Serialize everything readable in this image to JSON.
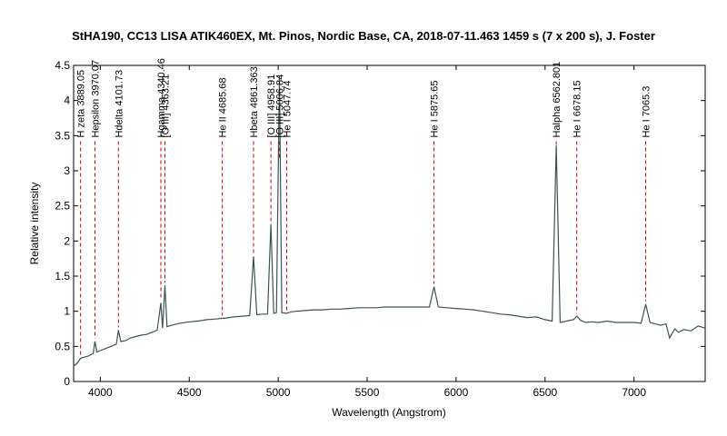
{
  "chart_data": {
    "type": "line",
    "title": "StHA190, CC13 LISA ATIK460EX, Mt. Pinos, Nordic Base, CA,  2018-07-11.463   1459 s (7 x 200 s),  J. Foster",
    "xlabel": "Wavelength (Angstrom)",
    "ylabel": "Relative intensity",
    "xlim": [
      3850,
      7400
    ],
    "ylim": [
      0,
      4.5
    ],
    "x_ticks": [
      4000,
      4500,
      5000,
      5500,
      6000,
      6500,
      7000
    ],
    "y_ticks": [
      0,
      0.5,
      1,
      1.5,
      2,
      2.5,
      3,
      3.5,
      4,
      4.5
    ],
    "x_tick_labels": [
      "4000",
      "4500",
      "5000",
      "5500",
      "6000",
      "6500",
      "7000"
    ],
    "y_tick_labels": [
      "0",
      "0.5",
      "1",
      "1.5",
      "2",
      "2.5",
      "3",
      "3.5",
      "4",
      "4.5"
    ],
    "grid": false,
    "line_color": "#3d5254",
    "marker_color": "#cc0000",
    "series": [
      {
        "x": [
          3850,
          3870,
          3889,
          3900,
          3930,
          3960,
          3970,
          3980,
          4000,
          4030,
          4060,
          4090,
          4101.7,
          4115,
          4140,
          4170,
          4200,
          4230,
          4260,
          4290,
          4320,
          4340.5,
          4350,
          4363.2,
          4375,
          4400,
          4450,
          4500,
          4550,
          4600,
          4650,
          4685.7,
          4700,
          4750,
          4800,
          4840,
          4861.3,
          4880,
          4910,
          4940,
          4958.9,
          4975,
          4990,
          5006.8,
          5020,
          5047.7,
          5070,
          5100,
          5150,
          5200,
          5250,
          5300,
          5350,
          5400,
          5450,
          5500,
          5550,
          5600,
          5650,
          5700,
          5750,
          5800,
          5850,
          5875.6,
          5900,
          5950,
          6000,
          6050,
          6100,
          6150,
          6200,
          6250,
          6300,
          6350,
          6400,
          6450,
          6500,
          6540,
          6562.8,
          6585,
          6620,
          6660,
          6678.2,
          6700,
          6730,
          6760,
          6800,
          6850,
          6900,
          6950,
          7000,
          7040,
          7065.3,
          7090,
          7120,
          7150,
          7180,
          7200,
          7230,
          7250,
          7280,
          7320,
          7360,
          7400
        ],
        "y": [
          0.22,
          0.26,
          0.33,
          0.34,
          0.36,
          0.4,
          0.57,
          0.42,
          0.44,
          0.47,
          0.5,
          0.53,
          0.73,
          0.57,
          0.58,
          0.62,
          0.64,
          0.66,
          0.67,
          0.7,
          0.73,
          1.12,
          0.76,
          1.37,
          0.78,
          0.8,
          0.83,
          0.85,
          0.86,
          0.88,
          0.89,
          0.9,
          0.9,
          0.92,
          0.93,
          0.94,
          1.78,
          0.95,
          0.96,
          0.96,
          2.24,
          0.97,
          0.98,
          4.35,
          0.98,
          0.97,
          0.99,
          1.0,
          1.01,
          1.02,
          1.02,
          1.03,
          1.03,
          1.04,
          1.05,
          1.05,
          1.05,
          1.06,
          1.06,
          1.06,
          1.06,
          1.06,
          1.06,
          1.35,
          1.06,
          1.05,
          1.04,
          1.03,
          1.02,
          1.0,
          0.98,
          0.96,
          0.95,
          0.93,
          0.91,
          0.92,
          0.88,
          0.86,
          3.36,
          0.84,
          0.86,
          0.88,
          0.93,
          0.87,
          0.84,
          0.85,
          0.84,
          0.86,
          0.84,
          0.84,
          0.84,
          0.83,
          1.1,
          0.84,
          0.82,
          0.8,
          0.82,
          0.62,
          0.75,
          0.7,
          0.74,
          0.72,
          0.79,
          0.76
        ]
      }
    ],
    "line_markers": [
      {
        "label": "H zeta 3889.05",
        "x": 3889.05
      },
      {
        "label": "Hepsilon 3970.07",
        "x": 3970.07
      },
      {
        "label": "Hdelta 4101.73",
        "x": 4101.73
      },
      {
        "label": "Hgamma 4340.46",
        "x": 4340.46
      },
      {
        "label": "[O III] 4363.21",
        "x": 4363.21
      },
      {
        "label": "He II 4685.68",
        "x": 4685.68
      },
      {
        "label": "Hbeta 4861.363",
        "x": 4861.363
      },
      {
        "label": "[O III] 4958.91",
        "x": 4958.91
      },
      {
        "label": "[O III] 5006.84",
        "x": 5006.84
      },
      {
        "label": "He I 5047.74",
        "x": 5047.74
      },
      {
        "label": "He I 5875.65",
        "x": 5875.65
      },
      {
        "label": "Halpha 6562.801",
        "x": 6562.801
      },
      {
        "label": "He I 6678.15",
        "x": 6678.15
      },
      {
        "label": "He I 7065.3",
        "x": 7065.3
      }
    ]
  }
}
